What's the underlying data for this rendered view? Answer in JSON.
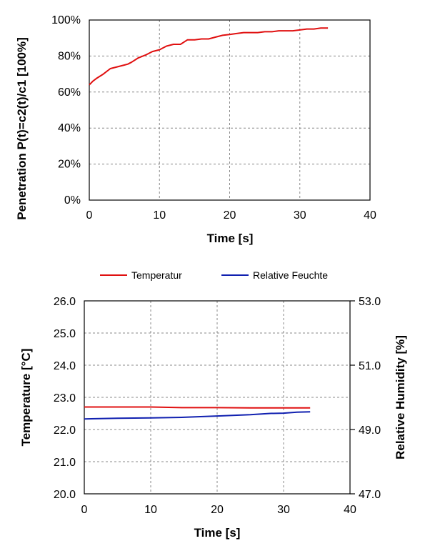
{
  "chart_data": [
    {
      "type": "line",
      "xlabel": "Time [s]",
      "ylabel": "Penetration P(t)=c2(t)/c1 [100%]",
      "xlim": [
        0,
        40
      ],
      "ylim": [
        0,
        100
      ],
      "x_ticks": [
        "0",
        "10",
        "20",
        "30",
        "40"
      ],
      "y_ticks": [
        "0%",
        "20%",
        "40%",
        "60%",
        "80%",
        "100%"
      ],
      "grid": true,
      "colors": {
        "series": "#e01010"
      },
      "series": [
        {
          "name": "",
          "x": [
            0,
            0.5,
            1,
            2,
            3,
            4,
            5,
            5.5,
            6,
            7,
            8,
            9,
            10,
            11,
            12,
            13,
            14,
            15,
            16,
            17,
            18,
            19,
            20,
            21,
            22,
            23,
            24,
            25,
            26,
            27,
            28,
            29,
            30,
            31,
            32,
            33,
            34
          ],
          "y": [
            64,
            66,
            67.5,
            70,
            73,
            74,
            75,
            75.5,
            76.5,
            79,
            80.5,
            82.5,
            83.5,
            85.5,
            86.5,
            86.5,
            89,
            89,
            89.5,
            89.5,
            90.5,
            91.5,
            92,
            92.5,
            93,
            93,
            93,
            93.5,
            93.5,
            94,
            94,
            94,
            94.5,
            95,
            95,
            95.5,
            95.5
          ]
        }
      ]
    },
    {
      "type": "line",
      "xlabel": "Time [s]",
      "ylabel": "Temperature [°C]",
      "ylabel_right": "Relative Humidity [%]",
      "xlim": [
        0,
        40
      ],
      "ylim": [
        20,
        26
      ],
      "ylim_right": [
        47,
        53
      ],
      "x_ticks": [
        "0",
        "10",
        "20",
        "30",
        "40"
      ],
      "y_ticks": [
        "20.0",
        "21.0",
        "22.0",
        "23.0",
        "24.0",
        "25.0",
        "26.0"
      ],
      "y_ticks_right": [
        "47.0",
        "49.0",
        "51.0",
        "53.0"
      ],
      "grid": true,
      "legend_position": "top",
      "series": [
        {
          "name": "Temperatur",
          "color": "#e01010",
          "axis": "left",
          "x": [
            0,
            5,
            10,
            15,
            20,
            25,
            30,
            34
          ],
          "y": [
            22.7,
            22.7,
            22.7,
            22.68,
            22.68,
            22.67,
            22.67,
            22.67
          ]
        },
        {
          "name": "Relative Feuchte",
          "color": "#1020b0",
          "axis": "right",
          "x": [
            0,
            5,
            10,
            15,
            20,
            25,
            28,
            30,
            32,
            34
          ],
          "y": [
            49.33,
            49.35,
            49.36,
            49.38,
            49.42,
            49.46,
            49.5,
            49.51,
            49.54,
            49.55
          ]
        }
      ]
    }
  ]
}
